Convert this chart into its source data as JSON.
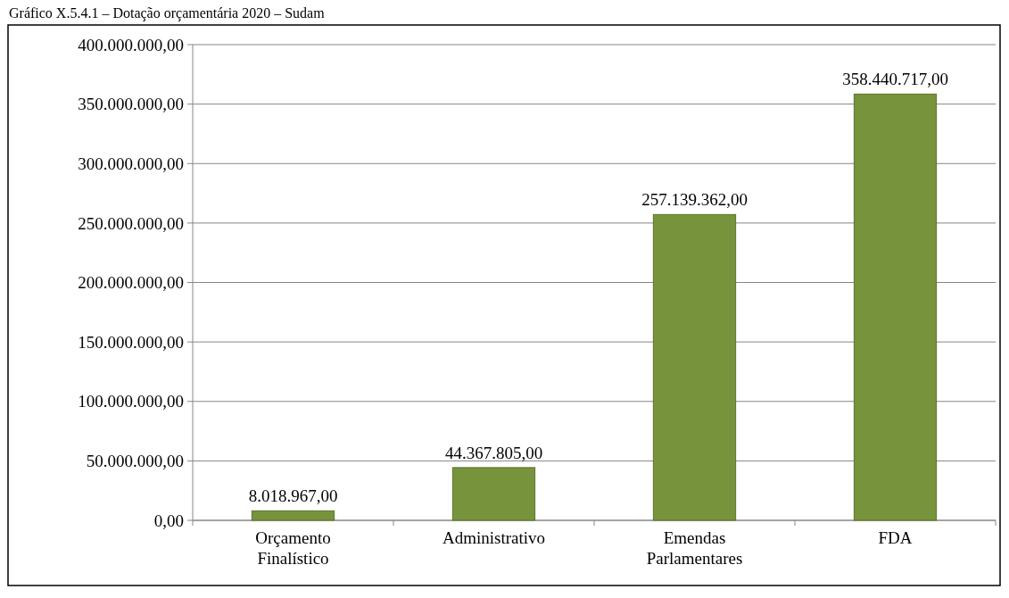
{
  "chart_data": {
    "type": "bar",
    "title": "Gráfico X.5.4.1 – Dotação orçamentária 2020 – Sudam",
    "categories": [
      "Orçamento Finalístico",
      "Administrativo",
      "Emendas Parlamentares",
      "FDA"
    ],
    "values": [
      8018967,
      44367805,
      257139362,
      358440717
    ],
    "value_labels": [
      "8.018.967,00",
      "44.367.805,00",
      "257.139.362,00",
      "358.440.717,00"
    ],
    "color": "#77933c",
    "ylim": [
      0,
      400000000
    ],
    "yticks": [
      {
        "value": 0,
        "label": "0,00"
      },
      {
        "value": 50000000,
        "label": "50.000.000,00"
      },
      {
        "value": 100000000,
        "label": "100.000.000,00"
      },
      {
        "value": 150000000,
        "label": "150.000.000,00"
      },
      {
        "value": 200000000,
        "label": "200.000.000,00"
      },
      {
        "value": 250000000,
        "label": "250.000.000,00"
      },
      {
        "value": 300000000,
        "label": "300.000.000,00"
      },
      {
        "value": 350000000,
        "label": "350.000.000,00"
      },
      {
        "value": 400000000,
        "label": "400.000.000,00"
      }
    ],
    "grid": "y"
  }
}
